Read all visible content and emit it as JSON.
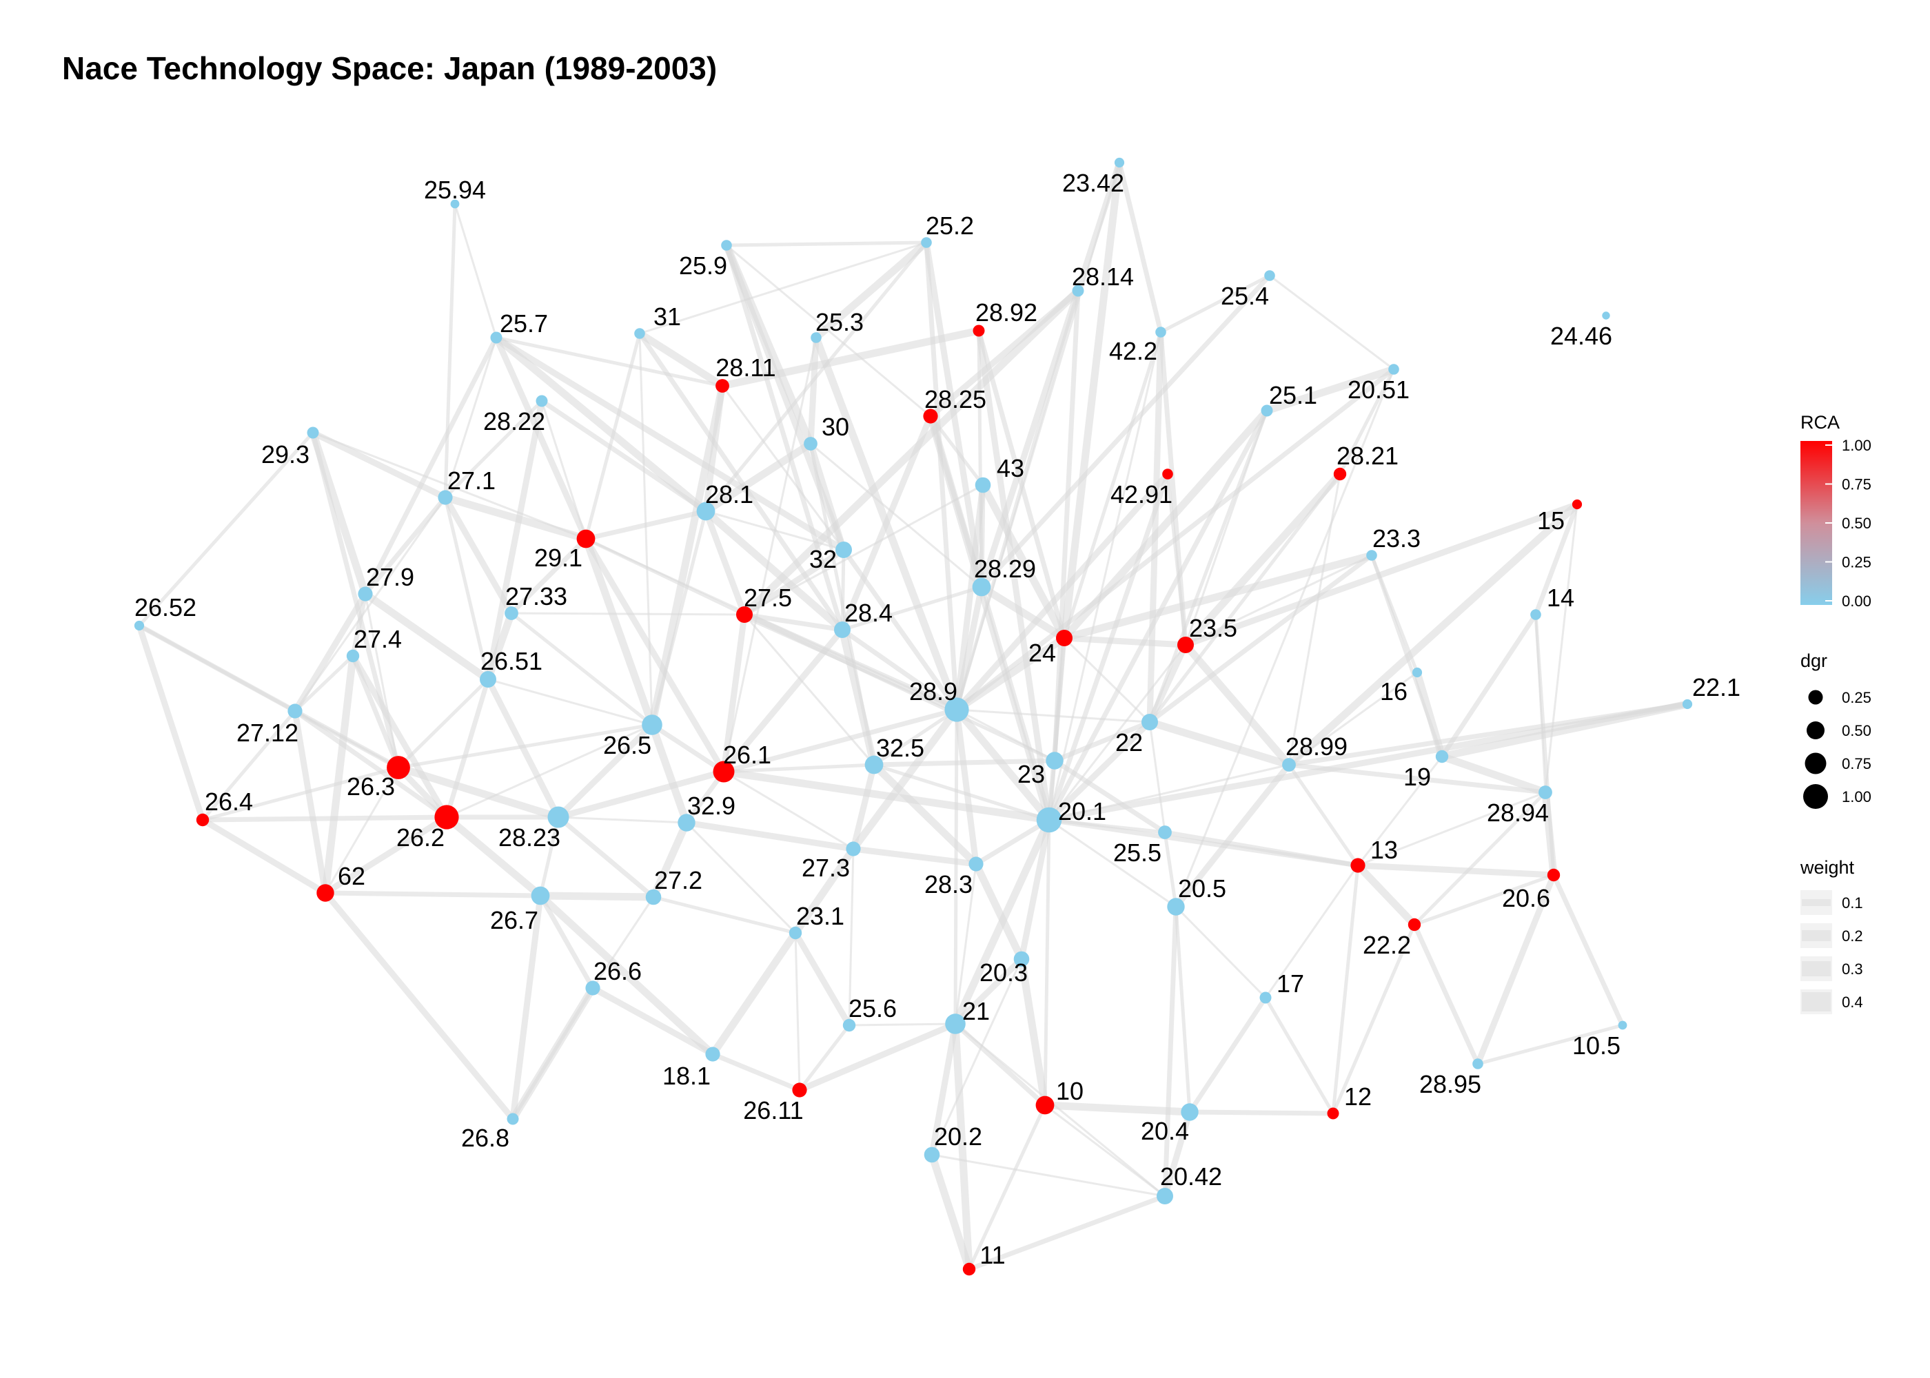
{
  "title": "Nace Technology Space: Japan (1989-2003)",
  "colors": {
    "low": "#87ceeb",
    "high": "#ff0000",
    "edge": "#d9d9d9"
  },
  "legend": {
    "rca": {
      "title": "RCA",
      "ticks": [
        "1.00",
        "0.75",
        "0.50",
        "0.25",
        "0.00"
      ]
    },
    "dgr": {
      "title": "dgr",
      "ticks": [
        "0.25",
        "0.50",
        "0.75",
        "1.00"
      ]
    },
    "weight": {
      "title": "weight",
      "ticks": [
        "0.1",
        "0.2",
        "0.3",
        "0.4"
      ]
    }
  },
  "nodes": [
    {
      "id": "25.94",
      "rca": 0,
      "dgr": 0.1
    },
    {
      "id": "23.42",
      "rca": 0,
      "dgr": 0.15
    },
    {
      "id": "25.2",
      "rca": 0,
      "dgr": 0.2
    },
    {
      "id": "25.9",
      "rca": 0,
      "dgr": 0.2
    },
    {
      "id": "28.14",
      "rca": 0,
      "dgr": 0.25
    },
    {
      "id": "25.4",
      "rca": 0,
      "dgr": 0.2
    },
    {
      "id": "25.7",
      "rca": 0,
      "dgr": 0.25
    },
    {
      "id": "31",
      "rca": 0,
      "dgr": 0.2
    },
    {
      "id": "25.3",
      "rca": 0,
      "dgr": 0.2
    },
    {
      "id": "28.92",
      "rca": 1,
      "dgr": 0.25
    },
    {
      "id": "42.2",
      "rca": 0,
      "dgr": 0.2
    },
    {
      "id": "24.46",
      "rca": 0,
      "dgr": 0.05
    },
    {
      "id": "20.51",
      "rca": 0,
      "dgr": 0.2
    },
    {
      "id": "28.11",
      "rca": 1,
      "dgr": 0.35
    },
    {
      "id": "28.25",
      "rca": 1,
      "dgr": 0.4
    },
    {
      "id": "28.22",
      "rca": 0,
      "dgr": 0.25
    },
    {
      "id": "25.1",
      "rca": 0,
      "dgr": 0.25
    },
    {
      "id": "29.3",
      "rca": 0,
      "dgr": 0.25
    },
    {
      "id": "30",
      "rca": 0,
      "dgr": 0.35
    },
    {
      "id": "43",
      "rca": 0,
      "dgr": 0.45
    },
    {
      "id": "42.91",
      "rca": 1,
      "dgr": 0.2
    },
    {
      "id": "28.21",
      "rca": 1,
      "dgr": 0.3
    },
    {
      "id": "27.1",
      "rca": 0,
      "dgr": 0.4
    },
    {
      "id": "28.1",
      "rca": 0,
      "dgr": 0.6
    },
    {
      "id": "15",
      "rca": 1,
      "dgr": 0.15
    },
    {
      "id": "29.1",
      "rca": 1,
      "dgr": 0.6
    },
    {
      "id": "32",
      "rca": 0,
      "dgr": 0.5
    },
    {
      "id": "23.3",
      "rca": 0,
      "dgr": 0.2
    },
    {
      "id": "28.29",
      "rca": 0,
      "dgr": 0.6
    },
    {
      "id": "27.9",
      "rca": 0,
      "dgr": 0.4
    },
    {
      "id": "26.52",
      "rca": 0,
      "dgr": 0.15
    },
    {
      "id": "27.33",
      "rca": 0,
      "dgr": 0.35
    },
    {
      "id": "27.5",
      "rca": 1,
      "dgr": 0.5
    },
    {
      "id": "28.4",
      "rca": 0,
      "dgr": 0.5
    },
    {
      "id": "14",
      "rca": 0,
      "dgr": 0.2
    },
    {
      "id": "24",
      "rca": 1,
      "dgr": 0.5
    },
    {
      "id": "23.5",
      "rca": 1,
      "dgr": 0.5
    },
    {
      "id": "27.4",
      "rca": 0,
      "dgr": 0.3
    },
    {
      "id": "26.51",
      "rca": 0,
      "dgr": 0.5
    },
    {
      "id": "16",
      "rca": 0,
      "dgr": 0.15
    },
    {
      "id": "22.1",
      "rca": 0,
      "dgr": 0.15
    },
    {
      "id": "27.12",
      "rca": 0,
      "dgr": 0.4
    },
    {
      "id": "28.9",
      "rca": 0,
      "dgr": 0.9
    },
    {
      "id": "26.5",
      "rca": 0,
      "dgr": 0.7
    },
    {
      "id": "22",
      "rca": 0,
      "dgr": 0.5
    },
    {
      "id": "26.1",
      "rca": 1,
      "dgr": 0.75
    },
    {
      "id": "32.5",
      "rca": 0,
      "dgr": 0.6
    },
    {
      "id": "28.99",
      "rca": 0,
      "dgr": 0.35
    },
    {
      "id": "19",
      "rca": 0,
      "dgr": 0.3
    },
    {
      "id": "23",
      "rca": 0,
      "dgr": 0.55
    },
    {
      "id": "26.3",
      "rca": 1,
      "dgr": 0.85
    },
    {
      "id": "26.4",
      "rca": 1,
      "dgr": 0.3
    },
    {
      "id": "28.94",
      "rca": 0,
      "dgr": 0.35
    },
    {
      "id": "26.2",
      "rca": 1,
      "dgr": 0.9
    },
    {
      "id": "28.23",
      "rca": 0,
      "dgr": 0.75
    },
    {
      "id": "32.9",
      "rca": 0,
      "dgr": 0.55
    },
    {
      "id": "20.1",
      "rca": 0,
      "dgr": 0.95
    },
    {
      "id": "27.3",
      "rca": 0,
      "dgr": 0.4
    },
    {
      "id": "25.5",
      "rca": 0,
      "dgr": 0.35
    },
    {
      "id": "13",
      "rca": 1,
      "dgr": 0.4
    },
    {
      "id": "62",
      "rca": 1,
      "dgr": 0.55
    },
    {
      "id": "28.3",
      "rca": 0,
      "dgr": 0.4
    },
    {
      "id": "20.6",
      "rca": 1,
      "dgr": 0.3
    },
    {
      "id": "27.2",
      "rca": 0,
      "dgr": 0.45
    },
    {
      "id": "26.7",
      "rca": 0,
      "dgr": 0.6
    },
    {
      "id": "20.5",
      "rca": 0,
      "dgr": 0.55
    },
    {
      "id": "23.1",
      "rca": 0,
      "dgr": 0.3
    },
    {
      "id": "22.2",
      "rca": 1,
      "dgr": 0.3
    },
    {
      "id": "20.3",
      "rca": 0,
      "dgr": 0.45
    },
    {
      "id": "17",
      "rca": 0,
      "dgr": 0.25
    },
    {
      "id": "26.6",
      "rca": 0,
      "dgr": 0.4
    },
    {
      "id": "25.6",
      "rca": 0,
      "dgr": 0.3
    },
    {
      "id": "21",
      "rca": 0,
      "dgr": 0.7
    },
    {
      "id": "10.5",
      "rca": 0,
      "dgr": 0.1
    },
    {
      "id": "28.95",
      "rca": 0,
      "dgr": 0.2
    },
    {
      "id": "18.1",
      "rca": 0,
      "dgr": 0.4
    },
    {
      "id": "26.11",
      "rca": 1,
      "dgr": 0.4
    },
    {
      "id": "10",
      "rca": 1,
      "dgr": 0.6
    },
    {
      "id": "12",
      "rca": 1,
      "dgr": 0.25
    },
    {
      "id": "20.4",
      "rca": 0,
      "dgr": 0.55
    },
    {
      "id": "26.8",
      "rca": 0,
      "dgr": 0.25
    },
    {
      "id": "20.2",
      "rca": 0,
      "dgr": 0.45
    },
    {
      "id": "20.42",
      "rca": 0,
      "dgr": 0.5
    },
    {
      "id": "11",
      "rca": 1,
      "dgr": 0.3
    }
  ]
}
